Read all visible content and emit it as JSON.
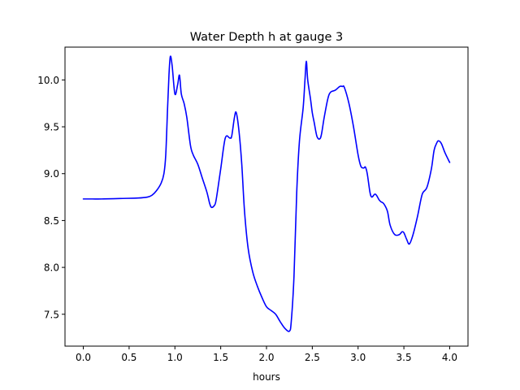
{
  "chart_data": {
    "type": "line",
    "title": "Water Depth h at gauge 3",
    "xlabel": "hours",
    "ylabel": "",
    "xlim": [
      -0.2,
      4.2
    ],
    "ylim": [
      7.16,
      10.35
    ],
    "xticks": [
      0.0,
      0.5,
      1.0,
      1.5,
      2.0,
      2.5,
      3.0,
      3.5,
      4.0
    ],
    "xtick_labels": [
      "0.0",
      "0.5",
      "1.0",
      "1.5",
      "2.0",
      "2.5",
      "3.0",
      "3.5",
      "4.0"
    ],
    "yticks": [
      7.5,
      8.0,
      8.5,
      9.0,
      9.5,
      10.0
    ],
    "ytick_labels": [
      "7.5",
      "8.0",
      "8.5",
      "9.0",
      "9.5",
      "10.0"
    ],
    "grid": false,
    "legend": "none",
    "series": [
      {
        "color": "#0000ff",
        "x": [
          0.0,
          0.1,
          0.2,
          0.4,
          0.6,
          0.7,
          0.75,
          0.8,
          0.85,
          0.88,
          0.9,
          0.92,
          0.935,
          0.95,
          0.97,
          1.0,
          1.03,
          1.05,
          1.07,
          1.1,
          1.13,
          1.17,
          1.2,
          1.25,
          1.3,
          1.35,
          1.38,
          1.4,
          1.43,
          1.45,
          1.5,
          1.55,
          1.6,
          1.62,
          1.65,
          1.67,
          1.7,
          1.73,
          1.76,
          1.8,
          1.85,
          1.9,
          1.95,
          2.0,
          2.05,
          2.1,
          2.15,
          2.2,
          2.25,
          2.27,
          2.3,
          2.33,
          2.36,
          2.4,
          2.42,
          2.435,
          2.45,
          2.48,
          2.5,
          2.52,
          2.55,
          2.58,
          2.6,
          2.63,
          2.67,
          2.7,
          2.75,
          2.8,
          2.83,
          2.85,
          2.9,
          2.95,
          3.0,
          3.03,
          3.06,
          3.08,
          3.1,
          3.13,
          3.15,
          3.18,
          3.2,
          3.23,
          3.25,
          3.28,
          3.32,
          3.35,
          3.4,
          3.45,
          3.48,
          3.5,
          3.53,
          3.56,
          3.6,
          3.65,
          3.7,
          3.75,
          3.8,
          3.83,
          3.86,
          3.88,
          3.91,
          3.95,
          4.0
        ],
        "y": [
          8.73,
          8.73,
          8.73,
          8.735,
          8.74,
          8.75,
          8.77,
          8.82,
          8.9,
          9.0,
          9.2,
          9.7,
          10.05,
          10.25,
          10.15,
          9.85,
          9.95,
          10.05,
          9.85,
          9.75,
          9.6,
          9.3,
          9.2,
          9.1,
          8.95,
          8.8,
          8.68,
          8.64,
          8.66,
          8.72,
          9.05,
          9.38,
          9.38,
          9.4,
          9.6,
          9.65,
          9.45,
          9.1,
          8.6,
          8.2,
          7.95,
          7.8,
          7.68,
          7.58,
          7.54,
          7.5,
          7.42,
          7.35,
          7.32,
          7.42,
          7.9,
          8.8,
          9.35,
          9.7,
          10.0,
          10.2,
          10.0,
          9.8,
          9.65,
          9.55,
          9.4,
          9.37,
          9.42,
          9.6,
          9.8,
          9.87,
          9.89,
          9.93,
          9.93,
          9.92,
          9.75,
          9.5,
          9.2,
          9.08,
          9.06,
          9.07,
          9.0,
          8.8,
          8.75,
          8.78,
          8.77,
          8.72,
          8.7,
          8.68,
          8.6,
          8.45,
          8.35,
          8.35,
          8.38,
          8.37,
          8.3,
          8.25,
          8.35,
          8.55,
          8.78,
          8.85,
          9.05,
          9.25,
          9.33,
          9.35,
          9.32,
          9.22,
          9.12
        ]
      }
    ]
  }
}
